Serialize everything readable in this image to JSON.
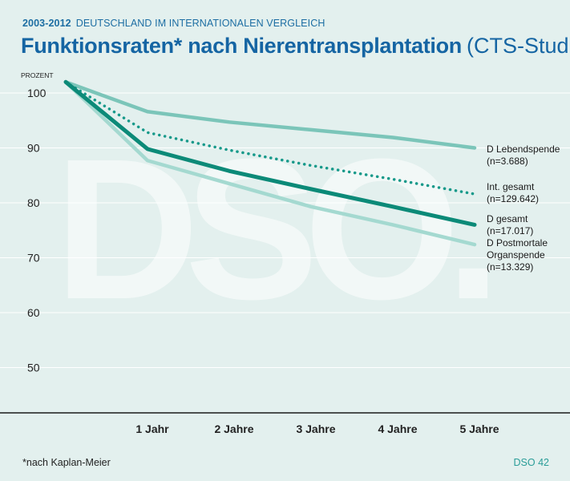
{
  "header": {
    "subtitle_years": "2003-2012",
    "subtitle_text": "DEUTSCHLAND IM INTERNATIONALEN VERGLEICH",
    "title_main": "Funktionsraten* nach Nierentransplantation",
    "title_paren": "(CTS-Studie)"
  },
  "watermark": "DSO.",
  "footer": {
    "footnote": "*nach Kaplan-Meier",
    "page_ref": "DSO 42"
  },
  "colors": {
    "background": "#e3f0ee",
    "lebendspende": "#7bc5b9",
    "international": "#16998a",
    "gesamt": "#0c8a78",
    "postmortal": "#a4d9d0",
    "title": "#1565a3"
  },
  "chart_data": {
    "type": "line",
    "ylabel": "PROZENT",
    "ylim": [
      50,
      102
    ],
    "yticks": [
      100,
      90,
      80,
      70,
      60,
      50
    ],
    "x": [
      0,
      1,
      2,
      3,
      4,
      5
    ],
    "xtick_labels": [
      "",
      "1 Jahr",
      "2 Jahre",
      "3 Jahre",
      "4 Jahre",
      "5 Jahre"
    ],
    "grid": true,
    "series": [
      {
        "key": "lebendspende",
        "label_lines": [
          "D Lebendspende",
          "(n=3.688)"
        ],
        "style": "solid-medium",
        "values": [
          102,
          96.6,
          94.7,
          93.3,
          91.9,
          90.0
        ]
      },
      {
        "key": "international",
        "label_lines": [
          "Int. gesamt",
          "(n=129.642)"
        ],
        "style": "dotted",
        "values": [
          102,
          92.8,
          89.6,
          86.8,
          84.3,
          81.6
        ]
      },
      {
        "key": "gesamt",
        "label_lines": [
          "D gesamt",
          "(n=17.017)"
        ],
        "style": "solid-thick",
        "values": [
          102,
          89.8,
          85.8,
          82.5,
          79.3,
          76.0
        ]
      },
      {
        "key": "postmortal",
        "label_lines": [
          "D Postmortale",
          "Organspende",
          "(n=13.329)"
        ],
        "style": "solid-medium",
        "values": [
          102,
          87.7,
          83.5,
          79.3,
          76.0,
          72.4
        ]
      }
    ]
  }
}
